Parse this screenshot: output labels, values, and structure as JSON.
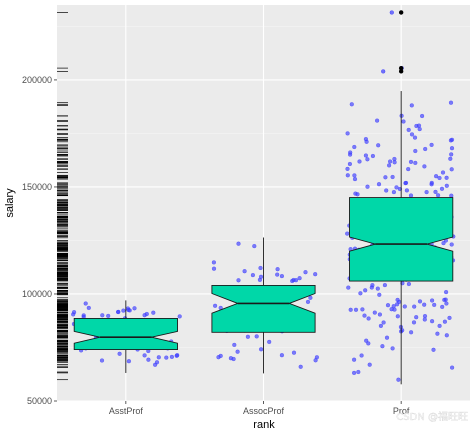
{
  "chart_data": {
    "type": "boxplot",
    "xlabel": "rank",
    "ylabel": "salary",
    "categories": [
      "AsstProf",
      "AssocProf",
      "Prof"
    ],
    "ylim": [
      50000,
      235000
    ],
    "yticks": [
      50000,
      100000,
      150000,
      200000
    ],
    "ytick_labels": [
      "50000",
      "100000",
      "150000",
      "200000"
    ],
    "grid": true,
    "notched": true,
    "rug_left": true,
    "boxes": [
      {
        "name": "AsstProf",
        "min": 63100,
        "q1": 74000,
        "median": 79800,
        "q3": 88600,
        "max": 97000,
        "notch_low": 77000,
        "notch_high": 82500,
        "outliers": [],
        "n": 67,
        "jitter_range": [
          63000,
          97000
        ]
      },
      {
        "name": "AssocProf",
        "min": 62900,
        "q1": 82100,
        "median": 95600,
        "q3": 104000,
        "max": 126400,
        "notch_low": 91000,
        "notch_high": 100200,
        "outliers": [],
        "n": 64,
        "jitter_range": [
          62000,
          126500
        ]
      },
      {
        "name": "Prof",
        "min": 57800,
        "q1": 106000,
        "median": 123300,
        "q3": 145000,
        "max": 194800,
        "notch_low": 120000,
        "notch_high": 126600,
        "outliers": [
          204000,
          205500,
          231500
        ],
        "n": 266,
        "jitter_range": [
          57800,
          231500
        ]
      }
    ],
    "colors": {
      "panel": "#ebebeb",
      "grid_major": "#ffffff",
      "grid_minor": "#f5f5f5",
      "box_fill": "#00d7a8",
      "box_stroke": "#1a1a1a",
      "points": "#3c3cff",
      "rug": "#000000"
    }
  },
  "watermark": "CSDN @福旺旺"
}
